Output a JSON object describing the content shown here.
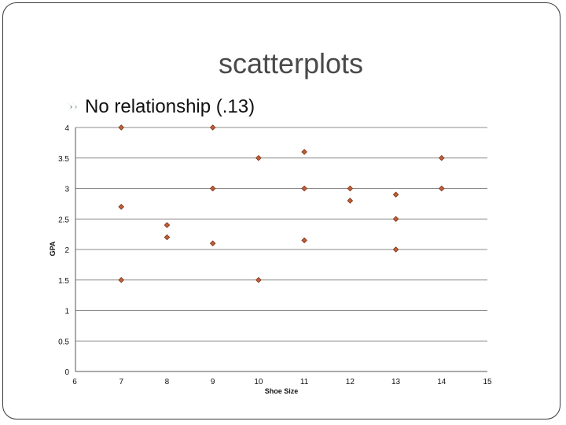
{
  "slide": {
    "title": "scatterplots",
    "bullet": "No relationship (.13)"
  },
  "colors": {
    "marker_fill": "#c0603a",
    "marker_stroke": "#7a2e12",
    "grid": "#8c8c8c",
    "text": "#111111"
  },
  "chart_data": {
    "type": "scatter",
    "xlabel": "Shoe Size",
    "ylabel": "GPA",
    "xlim": [
      6,
      15
    ],
    "ylim": [
      0,
      4
    ],
    "xticks": [
      "6",
      "7",
      "8",
      "9",
      "10",
      "11",
      "12",
      "13",
      "14",
      "15"
    ],
    "yticks": [
      "0",
      "0.5",
      "1",
      "1.5",
      "2",
      "2.5",
      "3",
      "3.5",
      "4"
    ],
    "grid": "horizontal",
    "points": [
      {
        "x": 7,
        "y": 4
      },
      {
        "x": 7,
        "y": 2.7
      },
      {
        "x": 7,
        "y": 1.5
      },
      {
        "x": 8,
        "y": 2.4
      },
      {
        "x": 8,
        "y": 2.2
      },
      {
        "x": 9,
        "y": 4
      },
      {
        "x": 9,
        "y": 3
      },
      {
        "x": 9,
        "y": 2.1
      },
      {
        "x": 10,
        "y": 3.5
      },
      {
        "x": 10,
        "y": 1.5
      },
      {
        "x": 11,
        "y": 3.6
      },
      {
        "x": 11,
        "y": 3
      },
      {
        "x": 11,
        "y": 2.15
      },
      {
        "x": 12,
        "y": 3
      },
      {
        "x": 12,
        "y": 2.8
      },
      {
        "x": 13,
        "y": 2.9
      },
      {
        "x": 13,
        "y": 2.5
      },
      {
        "x": 13,
        "y": 2
      },
      {
        "x": 14,
        "y": 3.5
      },
      {
        "x": 14,
        "y": 3
      }
    ]
  }
}
